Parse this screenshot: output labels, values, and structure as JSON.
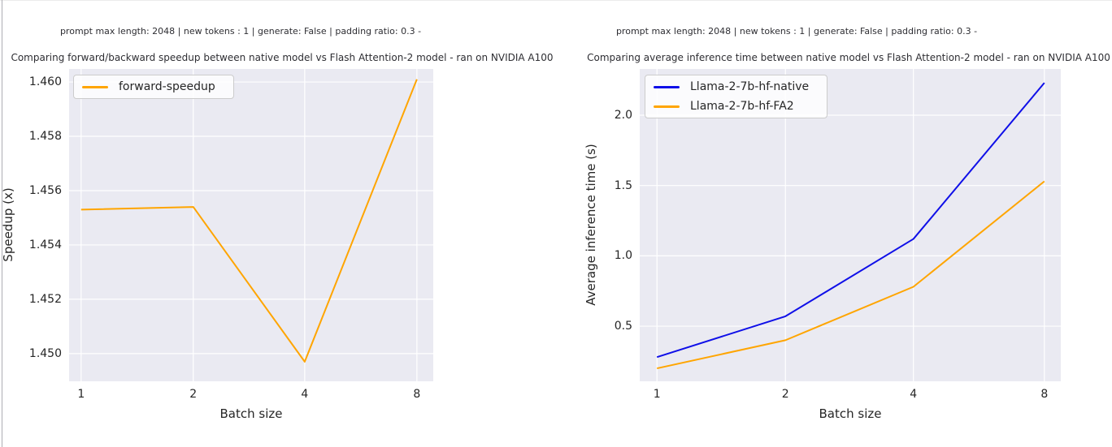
{
  "page": {
    "background": "#ffffff",
    "text_color": "#262626",
    "window_border_color": "#aeaeb4"
  },
  "chart_data": [
    {
      "type": "line",
      "suptitle": "prompt max length: 2048 | new tokens : 1 | generate: False | padding ratio: 0.3 -",
      "title": "Comparing forward/backward speedup between native model vs Flash Attention-2 model - ran on NVIDIA A100",
      "xlabel": "Batch size",
      "ylabel": "Speedup (x)",
      "x_scale": "log2",
      "categories": [
        1,
        2,
        4,
        8
      ],
      "xtick_labels": [
        "1",
        "2",
        "4",
        "8"
      ],
      "ytick_labels": [
        "1.450",
        "1.452",
        "1.454",
        "1.456",
        "1.458",
        "1.460"
      ],
      "ytick_values": [
        1.45,
        1.452,
        1.454,
        1.456,
        1.458,
        1.46
      ],
      "ylim": [
        1.44898,
        1.46048
      ],
      "grid": true,
      "plot_bg": "#eaeaf2",
      "grid_color": "#ffffff",
      "legend_position": "upper left",
      "series": [
        {
          "name": "forward-speedup",
          "color": "#ffa500",
          "values": [
            1.4553,
            1.4554,
            1.4497,
            1.4601
          ]
        }
      ]
    },
    {
      "type": "line",
      "suptitle": "prompt max length: 2048 | new tokens : 1 | generate: False | padding ratio: 0.3 -",
      "title": "Comparing average inference time between native model vs Flash Attention-2 model - ran on NVIDIA A100",
      "xlabel": "Batch size",
      "ylabel": "Average inference time (s)",
      "x_scale": "log2",
      "categories": [
        1,
        2,
        4,
        8
      ],
      "xtick_labels": [
        "1",
        "2",
        "4",
        "8"
      ],
      "ytick_labels": [
        "0.5",
        "1.0",
        "1.5",
        "2.0"
      ],
      "ytick_values": [
        0.5,
        1.0,
        1.5,
        2.0
      ],
      "ylim": [
        0.108,
        2.329
      ],
      "grid": true,
      "plot_bg": "#eaeaf2",
      "grid_color": "#ffffff",
      "legend_position": "upper left",
      "series": [
        {
          "name": "Llama-2-7b-hf-native",
          "color": "#0f0fe8",
          "values": [
            0.28,
            0.57,
            1.12,
            2.23
          ]
        },
        {
          "name": "Llama-2-7b-hf-FA2",
          "color": "#ffa500",
          "values": [
            0.2,
            0.4,
            0.78,
            1.53
          ]
        }
      ]
    }
  ]
}
